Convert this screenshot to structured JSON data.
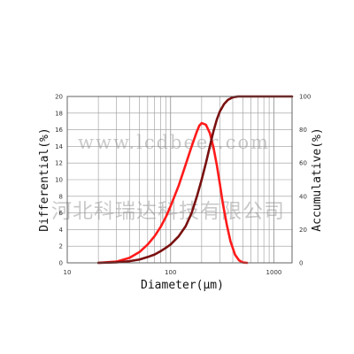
{
  "chart_data": {
    "type": "line",
    "x_scale": "log",
    "xlim": [
      10,
      1500
    ],
    "ylim_left": [
      0,
      20
    ],
    "ylim_right": [
      0,
      100
    ],
    "x_ticks": [
      {
        "value": 10,
        "label": "10"
      },
      {
        "value": 100,
        "label": "100"
      },
      {
        "value": 1000,
        "label": "1000"
      }
    ],
    "y_left_ticks": [
      0,
      2,
      4,
      6,
      8,
      10,
      12,
      14,
      16,
      18,
      20
    ],
    "y_right_ticks": [
      0,
      20,
      40,
      60,
      80,
      100
    ],
    "xlabel": "Diameter(μm)",
    "ylabel_left": "Differential(%)",
    "ylabel_right": "Accumulative(%)",
    "grid": true,
    "series": [
      {
        "axis": "left",
        "color": "#ff1a1a",
        "points": [
          [
            20,
            0
          ],
          [
            30,
            0.15
          ],
          [
            40,
            0.6
          ],
          [
            50,
            1.3
          ],
          [
            60,
            2.2
          ],
          [
            70,
            3.2
          ],
          [
            80,
            4.3
          ],
          [
            90,
            5.5
          ],
          [
            100,
            6.8
          ],
          [
            120,
            9.3
          ],
          [
            140,
            11.8
          ],
          [
            160,
            14.0
          ],
          [
            180,
            15.8
          ],
          [
            190,
            16.5
          ],
          [
            200,
            16.8
          ],
          [
            220,
            16.6
          ],
          [
            240,
            15.6
          ],
          [
            260,
            13.9
          ],
          [
            280,
            11.8
          ],
          [
            300,
            9.5
          ],
          [
            320,
            7.2
          ],
          [
            350,
            4.6
          ],
          [
            380,
            2.6
          ],
          [
            420,
            1.0
          ],
          [
            460,
            0.3
          ],
          [
            500,
            0.05
          ],
          [
            550,
            0
          ]
        ]
      },
      {
        "axis": "right",
        "color": "#7a1010",
        "points": [
          [
            20,
            0
          ],
          [
            30,
            0.3
          ],
          [
            40,
            1.0
          ],
          [
            50,
            2.0
          ],
          [
            60,
            3.5
          ],
          [
            70,
            5.0
          ],
          [
            80,
            7.0
          ],
          [
            90,
            9.0
          ],
          [
            100,
            11.0
          ],
          [
            120,
            16.0
          ],
          [
            140,
            22.0
          ],
          [
            160,
            30.0
          ],
          [
            180,
            40.0
          ],
          [
            200,
            50.0
          ],
          [
            220,
            60.0
          ],
          [
            240,
            70.0
          ],
          [
            260,
            79.0
          ],
          [
            280,
            86.0
          ],
          [
            300,
            91.0
          ],
          [
            330,
            95.5
          ],
          [
            360,
            98.0
          ],
          [
            400,
            99.5
          ],
          [
            450,
            100
          ],
          [
            500,
            100
          ],
          [
            1000,
            100
          ],
          [
            1500,
            100
          ]
        ]
      }
    ]
  },
  "watermark": {
    "url_text": "www.lcdbeer.com",
    "company_text": "河北科瑞达科技有限公司"
  },
  "colors": {
    "grid": "#9a9a9a",
    "axis": "#555555"
  }
}
